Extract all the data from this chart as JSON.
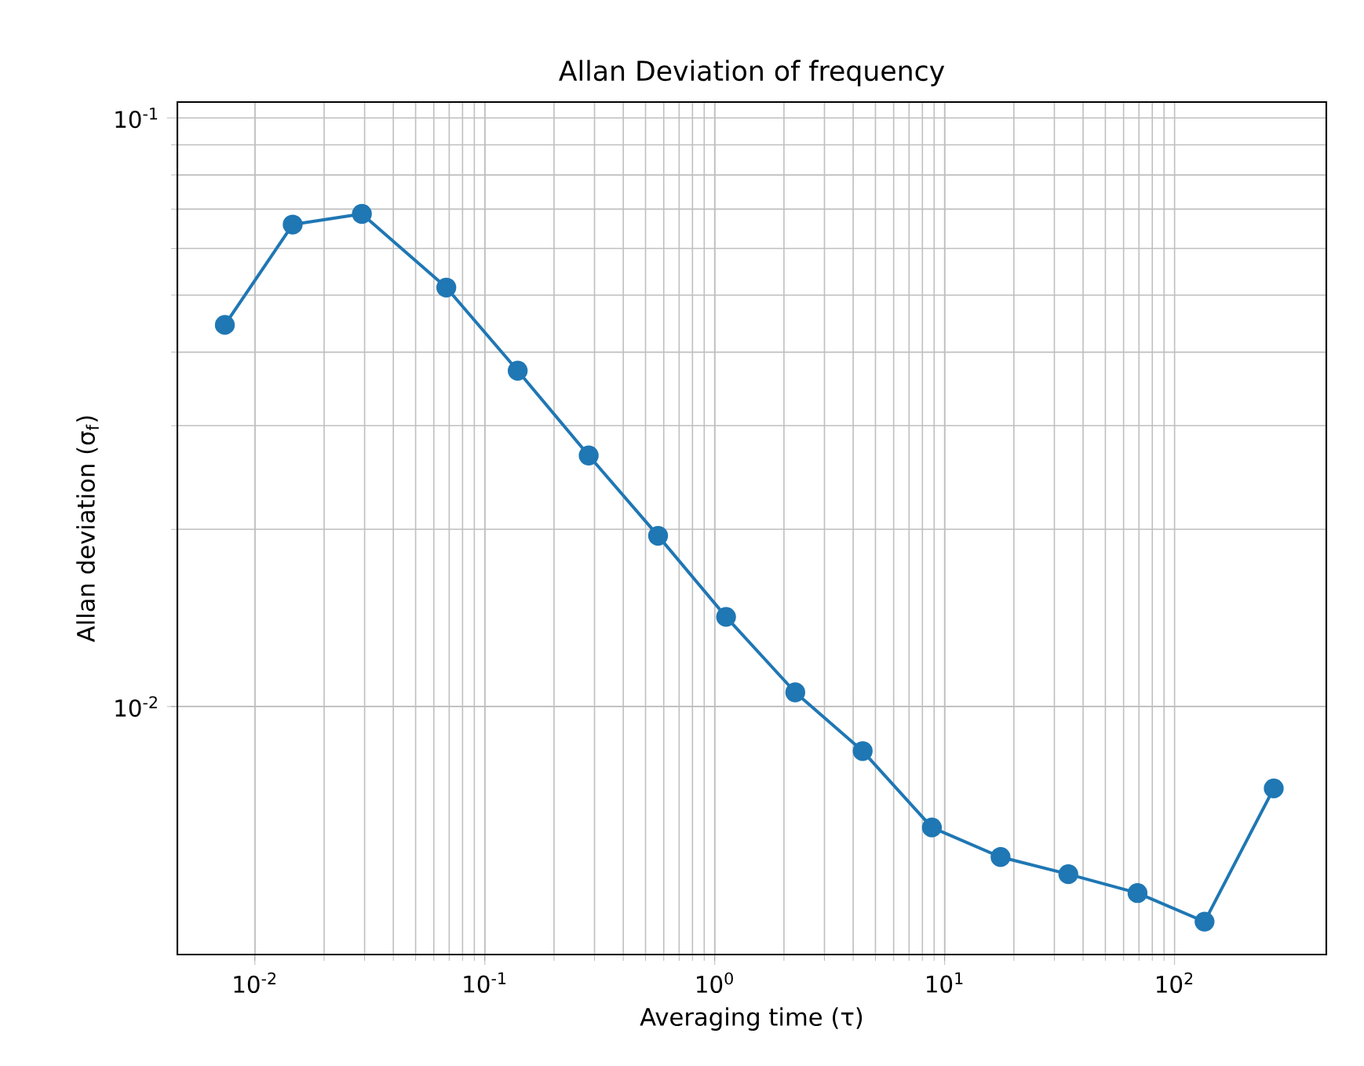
{
  "chart_data": {
    "type": "line",
    "title": "Allan Deviation of frequency",
    "xlabel": "Averaging time (τ)",
    "ylabel": "Allan deviation (σ$_{f}$)",
    "log": "xy",
    "grid": true,
    "marker": "circle",
    "line_style": "solid",
    "xlim": [
      0.0046,
      457
    ],
    "ylim": [
      0.00379,
      0.1064
    ],
    "xticks": [
      {
        "value": 0.01,
        "label": "10$^{-2}$"
      },
      {
        "value": 0.1,
        "label": "10$^{-1}$"
      },
      {
        "value": 1,
        "label": "10$^{0}$"
      },
      {
        "value": 10,
        "label": "10$^{1}$"
      },
      {
        "value": 100,
        "label": "10$^{2}$"
      }
    ],
    "yticks": [
      {
        "value": 0.01,
        "label": "10$^{-2}$"
      },
      {
        "value": 0.1,
        "label": "10$^{-1}$"
      }
    ],
    "x": [
      0.0074,
      0.0146,
      0.0292,
      0.068,
      0.139,
      0.283,
      0.567,
      1.12,
      2.24,
      4.4,
      8.8,
      17.5,
      34.5,
      69,
      135,
      270
    ],
    "series": [
      {
        "color": "#1f77b4",
        "values": [
          0.0445,
          0.0659,
          0.0687,
          0.0515,
          0.0372,
          0.0267,
          0.0195,
          0.0142,
          0.01057,
          0.0084,
          0.00623,
          0.00555,
          0.00519,
          0.00482,
          0.00431,
          0.00726
        ]
      }
    ]
  }
}
